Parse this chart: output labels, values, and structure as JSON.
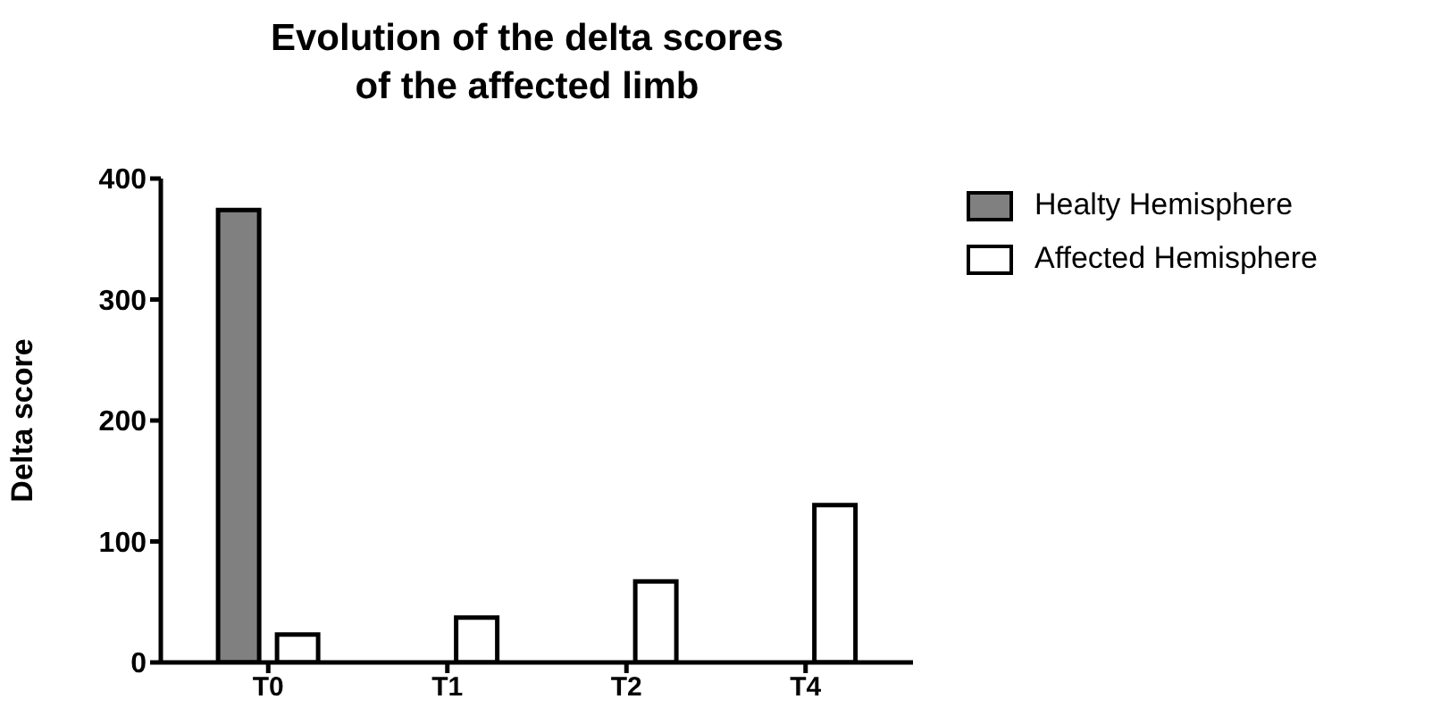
{
  "chart_data": {
    "type": "bar",
    "title": "Evolution of the delta scores\nof the affected limb",
    "ylabel": "Delta score",
    "categories": [
      "T0",
      "T1",
      "T2",
      "T4"
    ],
    "series": [
      {
        "name": "Healty Hemisphere",
        "color": "#808080",
        "values": [
          374,
          null,
          null,
          null
        ]
      },
      {
        "name": "Affected Hemisphere",
        "color": "#ffffff",
        "values": [
          23,
          37,
          67,
          130
        ]
      }
    ],
    "ylim": [
      0,
      400
    ],
    "yticks": [
      0,
      100,
      200,
      300,
      400
    ],
    "grid": false,
    "legend": "top right"
  }
}
